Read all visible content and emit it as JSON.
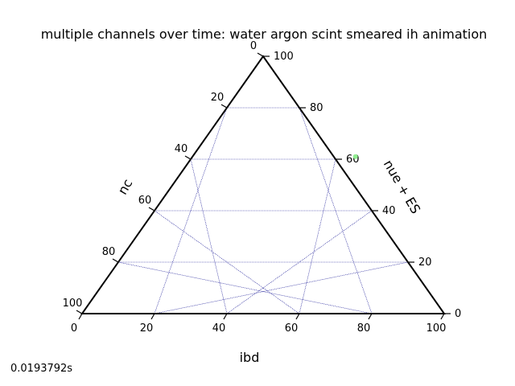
{
  "chart_data": {
    "type": "scatter",
    "subtype": "ternary",
    "title": "multiple channels over time: water argon scint smeared ih animation",
    "axes": {
      "bottom": {
        "label": "ibd",
        "ticks": [
          "0",
          "20",
          "40",
          "60",
          "80",
          "100"
        ]
      },
      "left": {
        "label": "nc",
        "ticks": [
          "100",
          "80",
          "60",
          "40",
          "20",
          "0"
        ]
      },
      "right": {
        "label": "nue + ES",
        "ticks": [
          "0",
          "20",
          "40",
          "60",
          "80",
          "100"
        ]
      }
    },
    "grid": true,
    "grid_color": "#00008b",
    "frame_color": "#000000",
    "points": [
      {
        "ibd": 45,
        "nue_es": 61,
        "nc": -6,
        "color": "#90ee90"
      }
    ]
  },
  "footer": {
    "time_label": "0.0193792s"
  }
}
